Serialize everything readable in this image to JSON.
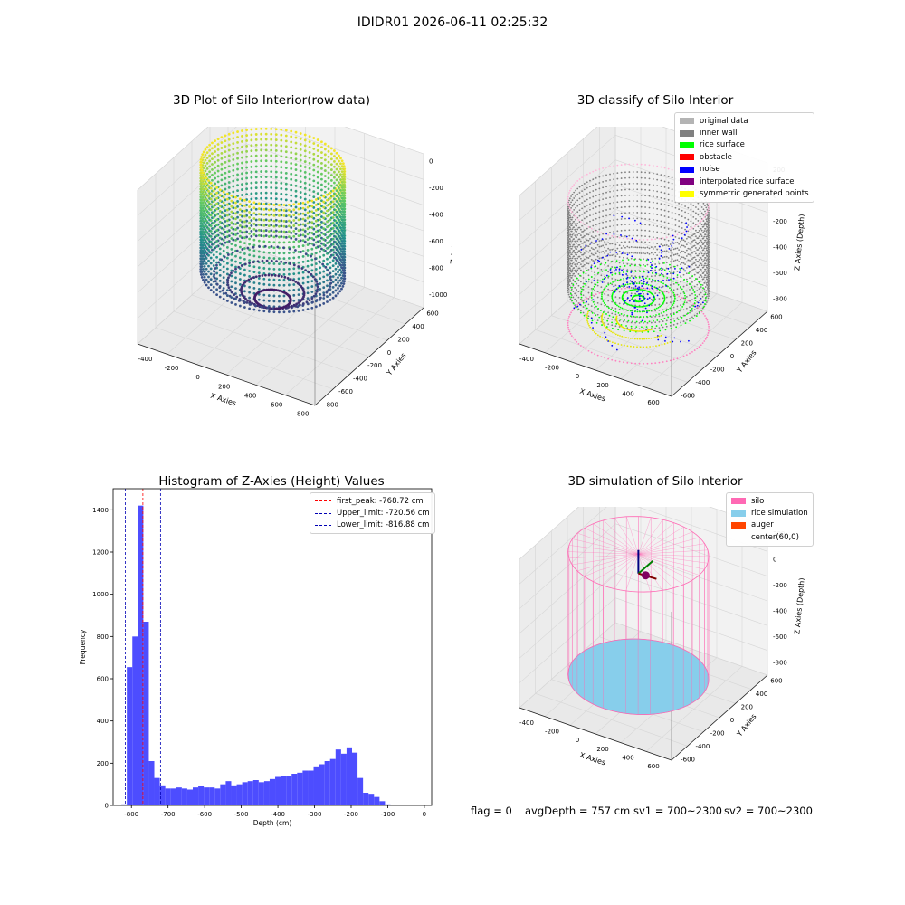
{
  "suptitle": "IDIDR01 2026-06-11 02:25:32",
  "footer": {
    "flag": "flag = 0",
    "avg_depth": "avgDepth = 757 cm",
    "sv1": "sv1 = 700~2300",
    "sv2": "sv2 = 700~2300"
  },
  "chart_data": [
    {
      "type": "scatter",
      "title": "3D Plot of Silo Interior(row data)",
      "xlabel": "X Axies",
      "ylabel": "Y Axies",
      "zlabel": "Z Axies (Depth)",
      "x_ticks": [
        "-400",
        "-200",
        "0",
        "200",
        "400",
        "600",
        "800"
      ],
      "y_ticks": [
        "-800",
        "-600",
        "-400",
        "-200",
        "0",
        "200",
        "400",
        "600"
      ],
      "z_ticks": [
        "-1000",
        "-800",
        "-600",
        "-400",
        "-200",
        "0"
      ],
      "xlim": [
        -500,
        850
      ],
      "ylim": [
        -850,
        650
      ],
      "zlim": [
        -1100,
        50
      ],
      "colormap": "viridis",
      "description_points": {
        "wall_radius": 480,
        "wall_center": [
          60,
          0
        ],
        "z_range": [
          -800,
          0
        ]
      }
    },
    {
      "type": "scatter",
      "title": "3D classify of Silo Interior",
      "xlabel": "X Axies",
      "ylabel": "Y Axies",
      "zlabel": "Z Axies (Depth)",
      "x_ticks": [
        "-400",
        "-200",
        "0",
        "200",
        "400",
        "600"
      ],
      "y_ticks": [
        "-600",
        "-400",
        "-200",
        "0",
        "200",
        "400",
        "600"
      ],
      "z_ticks": [
        "-800",
        "-600",
        "-400",
        "-200",
        "0",
        "200"
      ],
      "xlim": [
        -500,
        700
      ],
      "ylim": [
        -650,
        650
      ],
      "zlim": [
        -900,
        250
      ],
      "legend": [
        {
          "label": "original data",
          "color": "#b4b4b4"
        },
        {
          "label": "inner wall",
          "color": "#808080"
        },
        {
          "label": "rice surface",
          "color": "#00ff00"
        },
        {
          "label": "obstacle",
          "color": "#ff0000"
        },
        {
          "label": "noise",
          "color": "#0000ff"
        },
        {
          "label": "interpolated rice surface",
          "color": "#800080"
        },
        {
          "label": "symmetric generated points",
          "color": "#ffff00"
        }
      ]
    },
    {
      "type": "bar",
      "title": "Histogram of Z-Axies (Height) Values",
      "xlabel": "Depth (cm)",
      "ylabel": "Frequency",
      "xlim": [
        -850,
        20
      ],
      "ylim": [
        0,
        1500
      ],
      "x_ticks": [
        -800,
        -700,
        -600,
        -500,
        -400,
        -300,
        -200,
        -100,
        0
      ],
      "y_ticks": [
        0,
        200,
        400,
        600,
        800,
        1000,
        1200,
        1400
      ],
      "bar_color": "#4d4dff",
      "bin_edges": [
        -827.5,
        -812.5,
        -797.5,
        -782.5,
        -767.5,
        -752.5,
        -737.5,
        -722.5,
        -707.5,
        -692.5,
        -677.5,
        -662.5,
        -647.5,
        -632.5,
        -617.5,
        -602.5,
        -587.5,
        -572.5,
        -557.5,
        -542.5,
        -527.5,
        -512.5,
        -497.5,
        -482.5,
        -467.5,
        -452.5,
        -437.5,
        -422.5,
        -407.5,
        -392.5,
        -377.5,
        -362.5,
        -347.5,
        -332.5,
        -317.5,
        -302.5,
        -287.5,
        -272.5,
        -257.5,
        -242.5,
        -227.5,
        -212.5,
        -197.5,
        -182.5,
        -167.5,
        -152.5,
        -137.5,
        -122.5,
        -107.5,
        -92.5,
        -77.5,
        -62.5,
        -47.5,
        -32.5,
        -17.5,
        -2.5
      ],
      "counts": [
        5,
        655,
        800,
        1420,
        870,
        210,
        130,
        95,
        80,
        80,
        85,
        80,
        75,
        85,
        90,
        85,
        85,
        80,
        100,
        115,
        95,
        100,
        110,
        115,
        120,
        110,
        115,
        125,
        135,
        140,
        140,
        150,
        155,
        165,
        165,
        185,
        195,
        210,
        220,
        265,
        245,
        275,
        250,
        130,
        60,
        55,
        40,
        20,
        5,
        0,
        0,
        0,
        0,
        0,
        0
      ],
      "lines": [
        {
          "label": "first_peak: -768.72 cm",
          "x": -768.72,
          "color": "#ff0000"
        },
        {
          "label": "Upper_limit: -720.56 cm",
          "x": -720.56,
          "color": "#0000b4"
        },
        {
          "label": "Lower_limit: -816.88 cm",
          "x": -816.88,
          "color": "#0000b4"
        }
      ]
    },
    {
      "type": "scatter",
      "title": "3D simulation of Silo Interior",
      "xlabel": "X Axies",
      "ylabel": "Y Axies",
      "zlabel": "Z Axies (Depth)",
      "x_ticks": [
        "-400",
        "-200",
        "0",
        "200",
        "400",
        "600"
      ],
      "y_ticks": [
        "-600",
        "-400",
        "-200",
        "0",
        "200",
        "400",
        "600"
      ],
      "z_ticks": [
        "-800",
        "-600",
        "-400",
        "-200",
        "0",
        "200"
      ],
      "xlim": [
        -500,
        700
      ],
      "ylim": [
        -650,
        650
      ],
      "zlim": [
        -900,
        250
      ],
      "legend": [
        {
          "label": "silo",
          "color": "#ff69b4"
        },
        {
          "label": "rice simulation",
          "color": "#87ceeb"
        },
        {
          "label": "auger",
          "color": "#ff4500"
        },
        {
          "label": "center(60,0)",
          "color": ""
        }
      ]
    }
  ]
}
